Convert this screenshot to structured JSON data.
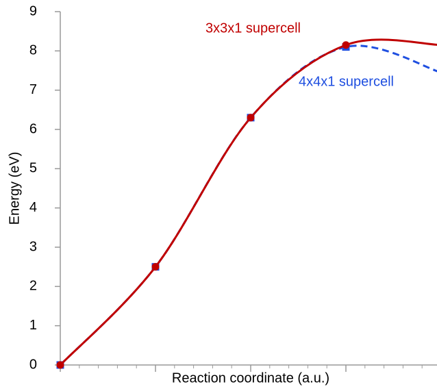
{
  "chart_data": {
    "type": "line",
    "xlabel": "Reaction coordinate (a.u.)",
    "ylabel": "Energy (eV)",
    "x": [
      0,
      1,
      2,
      3,
      4
    ],
    "series": [
      {
        "name": "3x3x1 supercell",
        "color": "#c00000",
        "marker": "circle",
        "dash": false,
        "values": [
          0,
          2.5,
          6.3,
          8.15,
          8.15
        ]
      },
      {
        "name": "4x4x1 supercell",
        "color": "#1f4fe0",
        "marker": "square",
        "dash": true,
        "values": [
          0,
          2.5,
          6.3,
          8.1,
          7.45
        ]
      }
    ],
    "xlim": [
      0,
      4
    ],
    "xticks": [
      0,
      1,
      2,
      3,
      4
    ],
    "ylim": [
      0,
      9
    ],
    "yticks": [
      0,
      1,
      2,
      3,
      4,
      5,
      6,
      7,
      8,
      9
    ],
    "grid": false
  }
}
